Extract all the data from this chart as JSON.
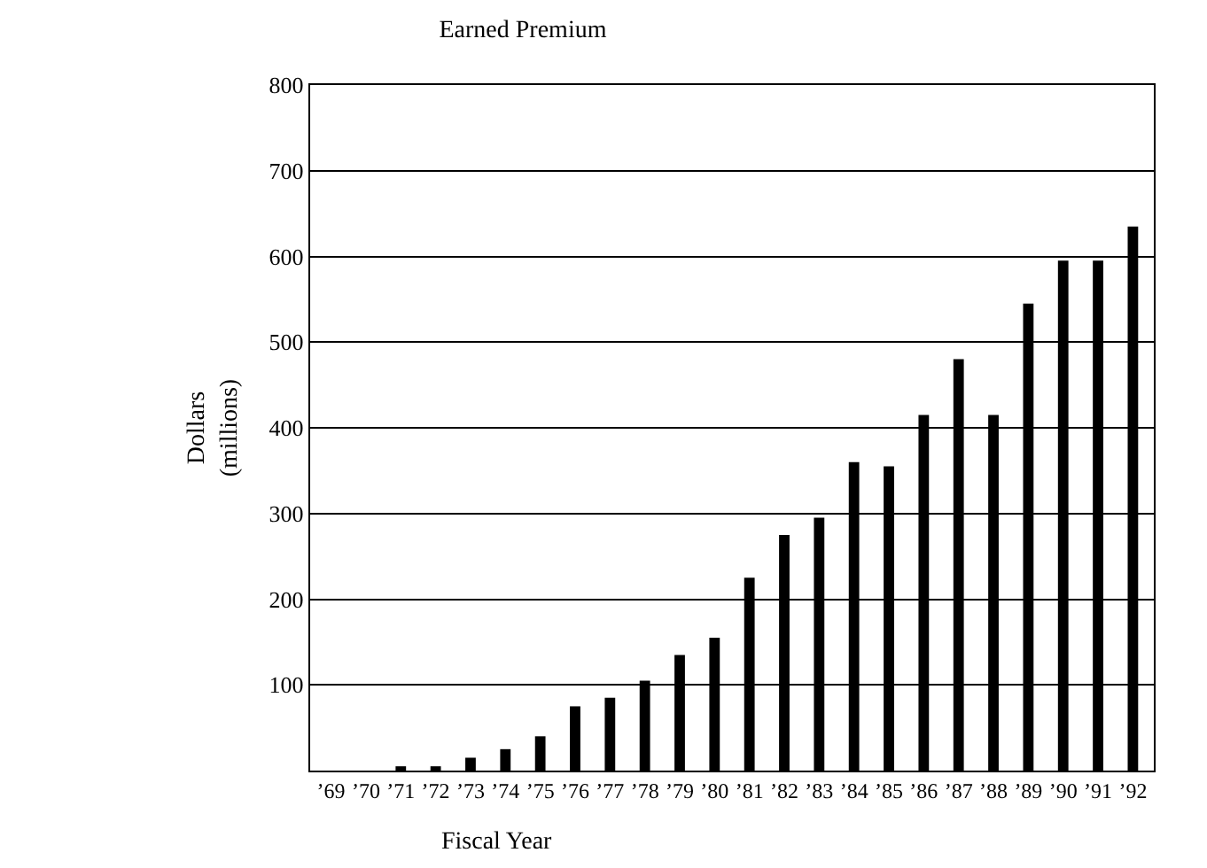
{
  "chart_data": {
    "type": "bar",
    "title": "Earned Premium",
    "xlabel": "Fiscal Year",
    "ylabel": "Dollars\n(millions)",
    "categories": [
      "’69",
      "’70",
      "’71",
      "’72",
      "’73",
      "’74",
      "’75",
      "’76",
      "’77",
      "’78",
      "’79",
      "’80",
      "’81",
      "’82",
      "’83",
      "’84",
      "’85",
      "’86",
      "’87",
      "’88",
      "’89",
      "’90",
      "’91",
      "’92"
    ],
    "values": [
      null,
      null,
      5,
      5,
      15,
      25,
      40,
      75,
      85,
      105,
      135,
      155,
      225,
      275,
      295,
      360,
      355,
      415,
      480,
      415,
      545,
      595,
      595,
      635
    ],
    "color": "#000000",
    "ylim": [
      0,
      800
    ],
    "yticks": [
      100,
      200,
      300,
      400,
      500,
      600,
      700,
      800
    ],
    "grid": "y"
  }
}
